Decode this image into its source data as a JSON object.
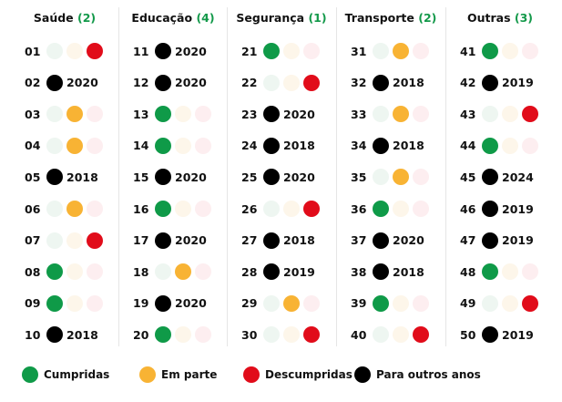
{
  "colors": {
    "green": "#0f9a48",
    "orange": "#f8b334",
    "red": "#e10c1a",
    "black": "#000000",
    "green_faded": "#eef6f1",
    "orange_faded": "#fdf6ea",
    "red_faded": "#fdeef0"
  },
  "columns": [
    {
      "title": "Saúde",
      "count": "(2)",
      "items": [
        {
          "n": "01",
          "s": "red"
        },
        {
          "n": "02",
          "y": "2020"
        },
        {
          "n": "03",
          "s": "orange"
        },
        {
          "n": "04",
          "s": "orange"
        },
        {
          "n": "05",
          "y": "2018"
        },
        {
          "n": "06",
          "s": "orange"
        },
        {
          "n": "07",
          "s": "red"
        },
        {
          "n": "08",
          "s": "green"
        },
        {
          "n": "09",
          "s": "green"
        },
        {
          "n": "10",
          "y": "2018"
        }
      ]
    },
    {
      "title": "Educação",
      "count": "(4)",
      "items": [
        {
          "n": "11",
          "y": "2020"
        },
        {
          "n": "12",
          "y": "2020"
        },
        {
          "n": "13",
          "s": "green"
        },
        {
          "n": "14",
          "s": "green"
        },
        {
          "n": "15",
          "y": "2020"
        },
        {
          "n": "16",
          "s": "green"
        },
        {
          "n": "17",
          "y": "2020"
        },
        {
          "n": "18",
          "s": "orange"
        },
        {
          "n": "19",
          "y": "2020"
        },
        {
          "n": "20",
          "s": "green"
        }
      ]
    },
    {
      "title": "Segurança",
      "count": "(1)",
      "items": [
        {
          "n": "21",
          "s": "green"
        },
        {
          "n": "22",
          "s": "red"
        },
        {
          "n": "23",
          "y": "2020"
        },
        {
          "n": "24",
          "y": "2018"
        },
        {
          "n": "25",
          "y": "2020"
        },
        {
          "n": "26",
          "s": "red"
        },
        {
          "n": "27",
          "y": "2018"
        },
        {
          "n": "28",
          "y": "2019"
        },
        {
          "n": "29",
          "s": "orange"
        },
        {
          "n": "30",
          "s": "red"
        }
      ]
    },
    {
      "title": "Transporte",
      "count": "(2)",
      "items": [
        {
          "n": "31",
          "s": "orange"
        },
        {
          "n": "32",
          "y": "2018"
        },
        {
          "n": "33",
          "s": "orange"
        },
        {
          "n": "34",
          "y": "2018"
        },
        {
          "n": "35",
          "s": "orange"
        },
        {
          "n": "36",
          "s": "green"
        },
        {
          "n": "37",
          "y": "2020"
        },
        {
          "n": "38",
          "y": "2018"
        },
        {
          "n": "39",
          "s": "green"
        },
        {
          "n": "40",
          "s": "red"
        }
      ]
    },
    {
      "title": "Outras",
      "count": "(3)",
      "items": [
        {
          "n": "41",
          "s": "green"
        },
        {
          "n": "42",
          "y": "2019"
        },
        {
          "n": "43",
          "s": "red"
        },
        {
          "n": "44",
          "s": "green"
        },
        {
          "n": "45",
          "y": "2024"
        },
        {
          "n": "46",
          "y": "2019"
        },
        {
          "n": "47",
          "y": "2019"
        },
        {
          "n": "48",
          "s": "green"
        },
        {
          "n": "49",
          "s": "red"
        },
        {
          "n": "50",
          "y": "2019"
        }
      ]
    }
  ],
  "legend": [
    {
      "label": "Cumpridas",
      "color": "green"
    },
    {
      "label": "Em parte",
      "color": "orange"
    },
    {
      "label": "Descumpridas",
      "color": "red"
    },
    {
      "label": "Para outros anos",
      "color": "black"
    }
  ]
}
